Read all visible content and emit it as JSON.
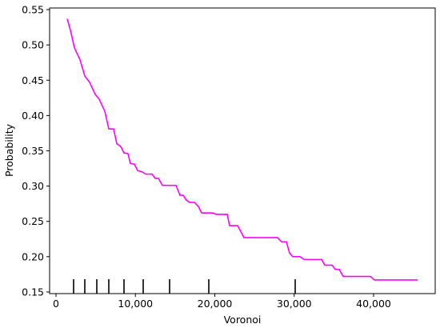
{
  "chart_data": {
    "type": "line",
    "xlabel": "Voronoi",
    "ylabel": "Probability",
    "color": "#ff00ff",
    "x": [
      1410,
      1814,
      2317,
      3023,
      3627,
      4232,
      4937,
      5441,
      6146,
      6650,
      7255,
      7657,
      8161,
      8564,
      9068,
      9370,
      9874,
      10277,
      10882,
      11285,
      12091,
      12494,
      12897,
      13401,
      15113,
      15617,
      16020,
      16423,
      16826,
      17431,
      17935,
      18338,
      19748,
      20151,
      21562,
      21864,
      22872,
      23678,
      27909,
      28413,
      29018,
      29421,
      29824,
      30730,
      31234,
      33451,
      33854,
      34761,
      35164,
      35668,
      36171,
      39597,
      40101,
      45542
    ],
    "values": [
      0.537,
      0.521,
      0.496,
      0.479,
      0.456,
      0.447,
      0.43,
      0.423,
      0.406,
      0.381,
      0.381,
      0.36,
      0.356,
      0.347,
      0.346,
      0.332,
      0.331,
      0.322,
      0.32,
      0.317,
      0.317,
      0.311,
      0.311,
      0.301,
      0.301,
      0.287,
      0.287,
      0.28,
      0.277,
      0.277,
      0.271,
      0.262,
      0.262,
      0.26,
      0.26,
      0.244,
      0.244,
      0.227,
      0.227,
      0.221,
      0.221,
      0.205,
      0.2,
      0.2,
      0.196,
      0.196,
      0.188,
      0.188,
      0.182,
      0.182,
      0.172,
      0.172,
      0.167,
      0.167
    ],
    "rug": [
      2217,
      3627,
      5139,
      6650,
      8564,
      10982,
      14307,
      19244,
      30126
    ],
    "xlim": [
      -806,
      47758
    ],
    "ylim": [
      0.1477,
      0.5523
    ],
    "xticks": [
      0,
      {
        "value": 10000,
        "label": "10,000"
      },
      {
        "value": 20000,
        "label": "20,000"
      },
      {
        "value": 30000,
        "label": "30,000"
      },
      {
        "value": 40000,
        "label": "40,000"
      }
    ],
    "yticks": [
      0.15,
      {
        "value": 0.2,
        "label": "0.20"
      },
      0.25,
      {
        "value": 0.3,
        "label": "0.30"
      },
      0.35,
      {
        "value": 0.4,
        "label": "0.40"
      },
      0.45,
      {
        "value": 0.5,
        "label": "0.50"
      },
      0.55
    ],
    "grid": false
  }
}
